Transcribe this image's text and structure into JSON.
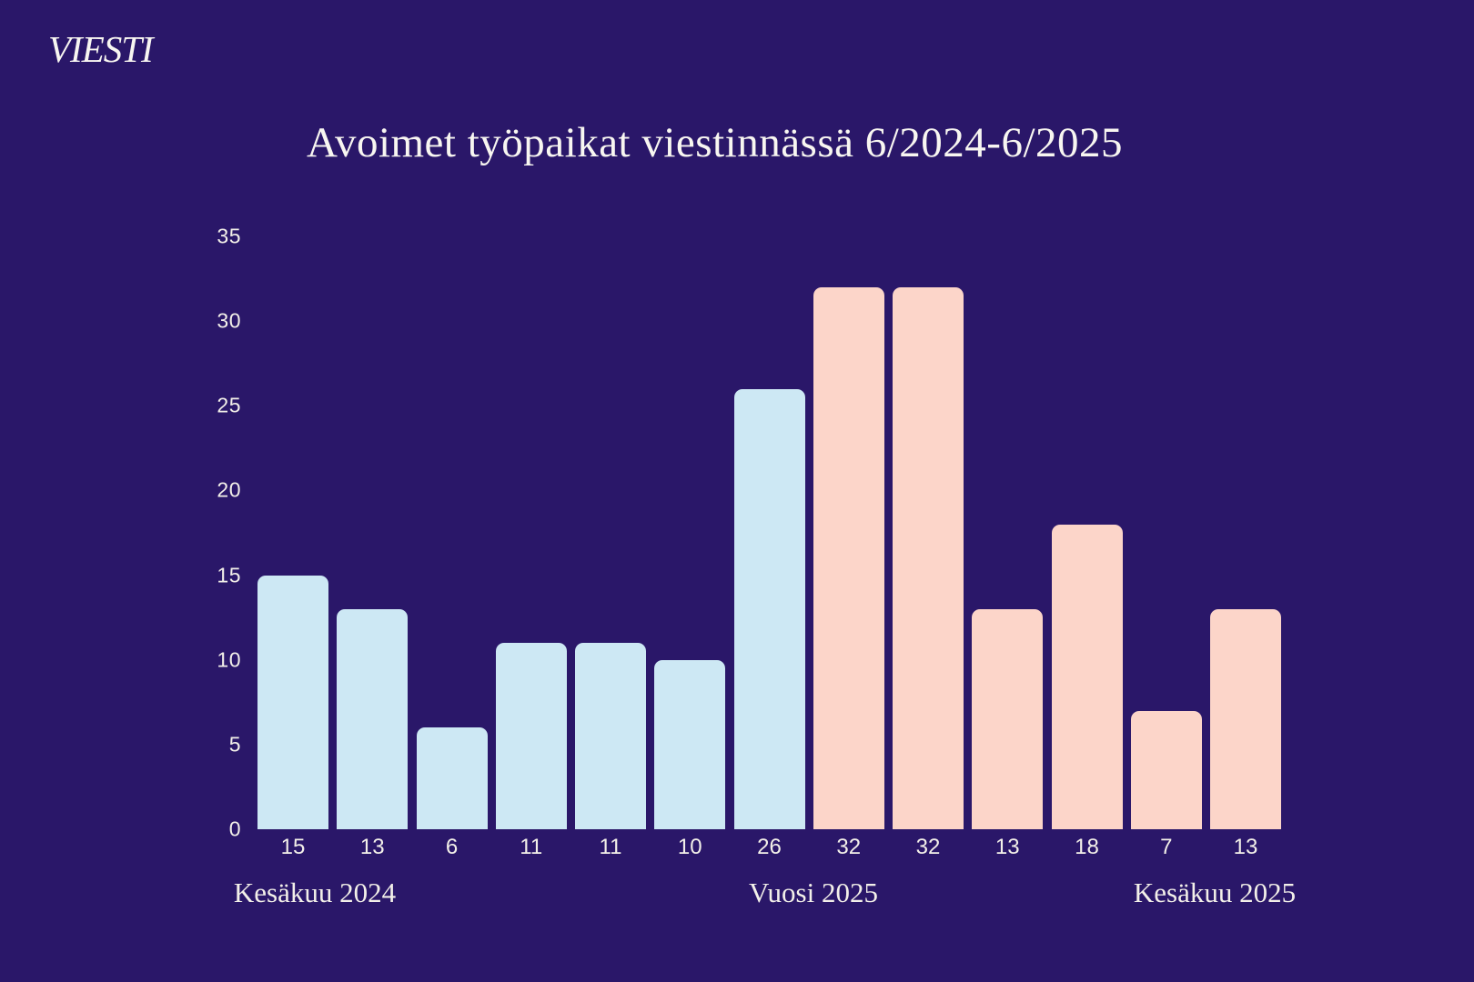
{
  "brand": {
    "logo_text": "VIESTI"
  },
  "colors": {
    "background": "#2A1769",
    "bar_blue": "#CDE8F4",
    "bar_pink": "#FCD5C9",
    "text": "#F6F3ED"
  },
  "chart_data": {
    "type": "bar",
    "title": "Avoimet työpaikat viestinnässä 6/2024-6/2025",
    "values": [
      15,
      13,
      6,
      11,
      11,
      10,
      26,
      32,
      32,
      13,
      18,
      7,
      13
    ],
    "bar_colors": [
      "#CDE8F4",
      "#CDE8F4",
      "#CDE8F4",
      "#CDE8F4",
      "#CDE8F4",
      "#CDE8F4",
      "#CDE8F4",
      "#FCD5C9",
      "#FCD5C9",
      "#FCD5C9",
      "#FCD5C9",
      "#FCD5C9",
      "#FCD5C9"
    ],
    "value_labels": [
      "15",
      "13",
      "6",
      "11",
      "11",
      "10",
      "26",
      "32",
      "32",
      "13",
      "18",
      "7",
      "13"
    ],
    "y_ticks": [
      35,
      30,
      25,
      20,
      15,
      10,
      5,
      0
    ],
    "ylim": [
      0,
      35
    ],
    "grid": false,
    "legend_position": "none",
    "x_period_labels": [
      "Kesäkuu 2024",
      "Vuosi 2025",
      "Kesäkuu 2025"
    ],
    "xlabel": "",
    "ylabel": ""
  }
}
